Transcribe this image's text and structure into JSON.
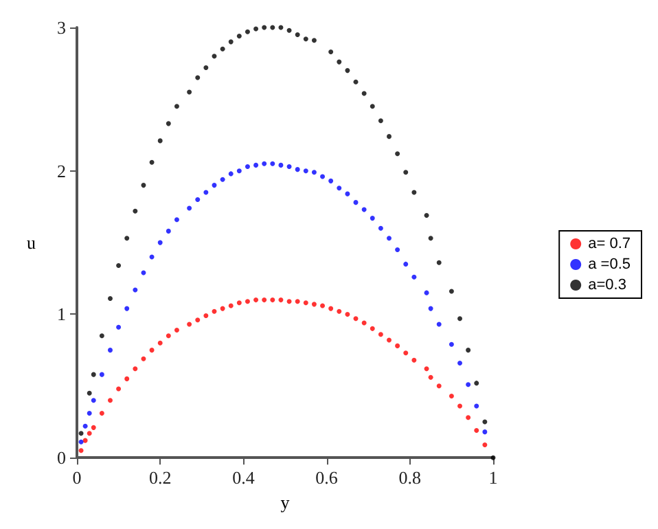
{
  "chart_data": {
    "type": "scatter",
    "xlabel": "y",
    "ylabel": "u",
    "xlim": [
      0,
      1
    ],
    "ylim": [
      0,
      3
    ],
    "xticks": [
      0,
      0.2,
      0.4,
      0.6,
      0.8,
      1
    ],
    "yticks": [
      0,
      1,
      2,
      3
    ],
    "grid": false,
    "legend": "right",
    "marker": "circle",
    "series": [
      {
        "name": "a= 0.7",
        "color": "#ff0000",
        "x": [
          0.01,
          0.02,
          0.03,
          0.04,
          0.06,
          0.08,
          0.1,
          0.12,
          0.14,
          0.16,
          0.18,
          0.2,
          0.22,
          0.24,
          0.27,
          0.29,
          0.31,
          0.33,
          0.35,
          0.37,
          0.39,
          0.41,
          0.43,
          0.45,
          0.47,
          0.49,
          0.51,
          0.53,
          0.55,
          0.57,
          0.59,
          0.61,
          0.63,
          0.65,
          0.67,
          0.69,
          0.71,
          0.73,
          0.75,
          0.77,
          0.79,
          0.81,
          0.84,
          0.85,
          0.87,
          0.9,
          0.92,
          0.94,
          0.96,
          0.98
        ],
        "values": [
          0.05,
          0.12,
          0.17,
          0.21,
          0.31,
          0.4,
          0.48,
          0.55,
          0.62,
          0.69,
          0.75,
          0.8,
          0.85,
          0.89,
          0.93,
          0.96,
          0.99,
          1.02,
          1.04,
          1.06,
          1.08,
          1.09,
          1.1,
          1.1,
          1.1,
          1.1,
          1.09,
          1.09,
          1.08,
          1.07,
          1.06,
          1.04,
          1.02,
          1.0,
          0.97,
          0.94,
          0.9,
          0.86,
          0.82,
          0.78,
          0.73,
          0.68,
          0.62,
          0.56,
          0.5,
          0.43,
          0.36,
          0.28,
          0.19,
          0.09
        ]
      },
      {
        "name": "a =0.5",
        "color": "#0000ff",
        "x": [
          0.01,
          0.02,
          0.03,
          0.04,
          0.06,
          0.08,
          0.1,
          0.12,
          0.14,
          0.16,
          0.18,
          0.2,
          0.22,
          0.24,
          0.27,
          0.29,
          0.31,
          0.33,
          0.35,
          0.37,
          0.39,
          0.41,
          0.43,
          0.45,
          0.47,
          0.49,
          0.51,
          0.53,
          0.55,
          0.57,
          0.59,
          0.61,
          0.63,
          0.65,
          0.67,
          0.69,
          0.71,
          0.73,
          0.75,
          0.77,
          0.79,
          0.81,
          0.84,
          0.85,
          0.87,
          0.9,
          0.92,
          0.94,
          0.96,
          0.98
        ],
        "values": [
          0.11,
          0.22,
          0.31,
          0.4,
          0.58,
          0.75,
          0.91,
          1.04,
          1.17,
          1.29,
          1.4,
          1.5,
          1.58,
          1.66,
          1.74,
          1.8,
          1.85,
          1.9,
          1.94,
          1.98,
          2.0,
          2.03,
          2.04,
          2.05,
          2.05,
          2.04,
          2.03,
          2.01,
          2.0,
          1.99,
          1.96,
          1.93,
          1.88,
          1.84,
          1.78,
          1.73,
          1.67,
          1.6,
          1.53,
          1.45,
          1.35,
          1.26,
          1.15,
          1.04,
          0.93,
          0.79,
          0.66,
          0.51,
          0.36,
          0.18
        ]
      },
      {
        "name": "a=0.3",
        "color": "#000000",
        "x": [
          0.01,
          0.03,
          0.04,
          0.06,
          0.08,
          0.1,
          0.12,
          0.14,
          0.16,
          0.18,
          0.2,
          0.22,
          0.24,
          0.27,
          0.29,
          0.31,
          0.33,
          0.35,
          0.37,
          0.39,
          0.41,
          0.43,
          0.45,
          0.47,
          0.49,
          0.51,
          0.53,
          0.55,
          0.57,
          0.61,
          0.63,
          0.65,
          0.67,
          0.69,
          0.71,
          0.73,
          0.75,
          0.77,
          0.79,
          0.81,
          0.84,
          0.85,
          0.87,
          0.9,
          0.92,
          0.94,
          0.96,
          0.98,
          1.0
        ],
        "values": [
          0.17,
          0.45,
          0.58,
          0.85,
          1.11,
          1.34,
          1.53,
          1.72,
          1.9,
          2.06,
          2.21,
          2.33,
          2.45,
          2.55,
          2.65,
          2.72,
          2.8,
          2.85,
          2.9,
          2.94,
          2.97,
          2.99,
          3.0,
          3.0,
          3.0,
          2.98,
          2.95,
          2.92,
          2.91,
          2.83,
          2.76,
          2.7,
          2.62,
          2.54,
          2.45,
          2.35,
          2.24,
          2.12,
          1.99,
          1.85,
          1.69,
          1.53,
          1.36,
          1.16,
          0.97,
          0.75,
          0.52,
          0.25,
          0
        ]
      }
    ]
  }
}
